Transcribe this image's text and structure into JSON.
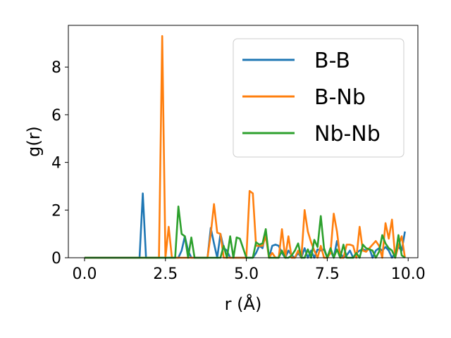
{
  "chart_data": {
    "type": "line",
    "xlabel": "r (Å)",
    "ylabel": "g(r)",
    "xlim": [
      -0.5,
      10.3
    ],
    "ylim": [
      0,
      9.75
    ],
    "xticks": [
      0.0,
      2.5,
      5.0,
      7.5,
      10.0
    ],
    "xtick_labels": [
      "0.0",
      "2.5",
      "5.0",
      "7.5",
      "10.0"
    ],
    "yticks": [
      0,
      2,
      4,
      6,
      8
    ],
    "ytick_labels": [
      "0",
      "2",
      "4",
      "6",
      "8"
    ],
    "grid": false,
    "legend_position": "upper right",
    "series": [
      {
        "name": "B-B",
        "color": "#1f77b4",
        "x": [
          0.0,
          1.7,
          1.8,
          1.9,
          2.0,
          2.9,
          3.0,
          3.1,
          3.2,
          3.3,
          3.4,
          3.7,
          3.8,
          3.9,
          4.0,
          4.1,
          4.2,
          4.3,
          4.4,
          4.5,
          4.6,
          4.7,
          4.8,
          4.9,
          5.0,
          5.1,
          5.2,
          5.3,
          5.4,
          5.5,
          5.6,
          5.7,
          5.8,
          5.9,
          6.0,
          6.1,
          6.2,
          6.3,
          6.4,
          6.5,
          6.6,
          6.7,
          6.8,
          6.9,
          7.0,
          7.1,
          7.2,
          7.3,
          7.4,
          7.5,
          7.6,
          7.7,
          7.8,
          7.9,
          8.0,
          8.1,
          8.2,
          8.3,
          8.4,
          8.5,
          8.6,
          8.7,
          8.8,
          8.9,
          9.0,
          9.1,
          9.2,
          9.3,
          9.4,
          9.5,
          9.6,
          9.7,
          9.8,
          9.9
        ],
        "y": [
          0,
          0,
          2.7,
          0,
          0,
          0,
          0.3,
          0.9,
          0.3,
          0,
          0,
          0,
          0,
          1.25,
          0.6,
          0,
          1.0,
          0.4,
          0.3,
          0,
          0,
          0,
          0,
          0,
          0,
          0,
          0,
          0.2,
          0.5,
          0.4,
          1.1,
          0,
          0.5,
          0.55,
          0.5,
          0.2,
          0,
          0.3,
          0.1,
          0,
          0.2,
          0,
          0.4,
          0,
          0.3,
          0,
          0.35,
          0.3,
          0.35,
          0,
          0.3,
          0,
          0.7,
          0.2,
          0,
          0.1,
          0.3,
          0,
          0.2,
          0.3,
          0.35,
          0.3,
          0.4,
          0,
          0.3,
          0.4,
          0.3,
          0.45,
          0.3,
          0,
          0.2,
          0.45,
          0.3,
          1.1
        ]
      },
      {
        "name": "B-Nb",
        "color": "#ff7f0e",
        "x": [
          0.0,
          2.2,
          2.3,
          2.4,
          2.5,
          2.6,
          2.7,
          3.7,
          3.8,
          3.9,
          4.0,
          4.1,
          4.2,
          4.3,
          4.4,
          4.5,
          4.6,
          4.7,
          4.8,
          4.9,
          5.0,
          5.1,
          5.2,
          5.3,
          5.4,
          5.5,
          5.6,
          5.7,
          5.8,
          5.9,
          6.0,
          6.1,
          6.2,
          6.3,
          6.4,
          6.5,
          6.6,
          6.7,
          6.8,
          6.9,
          7.0,
          7.1,
          7.2,
          7.3,
          7.4,
          7.5,
          7.6,
          7.7,
          7.8,
          7.9,
          8.0,
          8.1,
          8.2,
          8.3,
          8.4,
          8.5,
          8.6,
          8.7,
          8.8,
          8.9,
          9.0,
          9.1,
          9.2,
          9.3,
          9.4,
          9.5,
          9.6,
          9.7,
          9.8,
          9.9
        ],
        "y": [
          0,
          0,
          0,
          9.3,
          0,
          1.3,
          0,
          0,
          0,
          1.0,
          2.25,
          1.05,
          1.0,
          0,
          0,
          0,
          0,
          0,
          0,
          0,
          0,
          2.8,
          2.7,
          0.5,
          0.5,
          0.5,
          0.9,
          0,
          0.2,
          0,
          0,
          1.2,
          0,
          0.9,
          0,
          0,
          0.3,
          0,
          2.0,
          1.1,
          0.65,
          0.3,
          0,
          0.5,
          0,
          0,
          0.2,
          1.85,
          1.1,
          0,
          0,
          0.55,
          0.55,
          0.5,
          0,
          1.3,
          0.3,
          0.25,
          0.4,
          0.55,
          0.7,
          0.5,
          0,
          1.45,
          0.8,
          1.6,
          0,
          0.5,
          0.9,
          0
        ]
      },
      {
        "name": "Nb-Nb",
        "color": "#2ca02c",
        "x": [
          0.0,
          2.8,
          2.9,
          3.0,
          3.1,
          3.2,
          3.3,
          3.4,
          4.2,
          4.3,
          4.4,
          4.5,
          4.6,
          4.7,
          4.8,
          4.9,
          5.0,
          5.1,
          5.2,
          5.3,
          5.4,
          5.5,
          5.6,
          5.7,
          5.8,
          5.9,
          6.0,
          6.1,
          6.2,
          6.3,
          6.4,
          6.5,
          6.6,
          6.7,
          6.8,
          6.9,
          7.0,
          7.1,
          7.2,
          7.3,
          7.4,
          7.5,
          7.6,
          7.7,
          7.8,
          7.9,
          8.0,
          8.1,
          8.2,
          8.3,
          8.4,
          8.5,
          8.6,
          8.7,
          8.8,
          8.9,
          9.0,
          9.1,
          9.2,
          9.3,
          9.4,
          9.5,
          9.6,
          9.7,
          9.8,
          9.9
        ],
        "y": [
          0,
          0,
          2.15,
          1.0,
          0.9,
          0,
          0.85,
          0,
          0,
          0.5,
          0,
          0.9,
          0,
          0.85,
          0.8,
          0.4,
          0,
          0,
          0,
          0.65,
          0.55,
          0.6,
          1.2,
          0,
          0,
          0,
          0,
          0.3,
          0,
          0,
          0.1,
          0.3,
          0.6,
          0,
          0,
          0.35,
          0,
          0.75,
          0.45,
          1.75,
          0.4,
          0,
          0.4,
          0,
          0.35,
          0,
          0.55,
          0,
          0,
          0,
          0.2,
          0,
          0.55,
          0.4,
          0.35,
          0.3,
          0,
          0.25,
          0.95,
          0.6,
          0.4,
          0.3,
          0,
          0.95,
          0.1,
          0
        ]
      }
    ]
  }
}
